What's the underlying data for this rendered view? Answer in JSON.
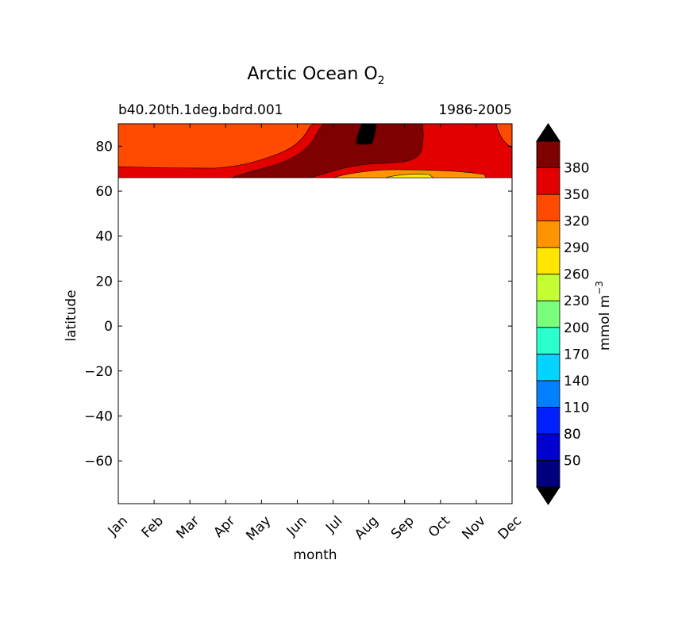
{
  "chart_data": {
    "type": "heatmap",
    "title_main": "Arctic Ocean O",
    "title_sub": "2",
    "subtitle_left": "b40.20th.1deg.bdrd.001",
    "subtitle_right": "1986-2005",
    "xlabel": "month",
    "ylabel": "latitude",
    "x_ticks": [
      "Jan",
      "Feb",
      "Mar",
      "Apr",
      "May",
      "Jun",
      "Jul",
      "Aug",
      "Sep",
      "Oct",
      "Nov",
      "Dec"
    ],
    "y_ticks": [
      "80",
      "60",
      "40",
      "20",
      "0",
      "−20",
      "−40",
      "−60"
    ],
    "y_tick_values": [
      80,
      60,
      40,
      20,
      0,
      -20,
      -40,
      -60
    ],
    "ylim": [
      -79,
      90
    ],
    "data_lat_range": [
      66.5,
      90
    ],
    "colorbar": {
      "label": "mmol m",
      "label_exp": "−3",
      "tick_labels": [
        "50",
        "80",
        "110",
        "140",
        "170",
        "200",
        "230",
        "260",
        "290",
        "320",
        "350",
        "380"
      ],
      "levels": [
        20,
        50,
        80,
        110,
        140,
        170,
        200,
        230,
        260,
        290,
        320,
        350,
        380,
        410
      ],
      "colors": [
        "#00007f",
        "#0000d0",
        "#0020ff",
        "#0080ff",
        "#00d4ff",
        "#2affce",
        "#7aff7d",
        "#c4ff33",
        "#ffe500",
        "#ff9400",
        "#ff4a00",
        "#e30000",
        "#7f0000"
      ],
      "under_color": "#000000",
      "over_color": "#000000"
    },
    "regions": [
      {
        "name": "level-320-350",
        "color": "#ff4a00"
      },
      {
        "name": "level-350-380",
        "color": "#e30000"
      },
      {
        "name": "level-380-410",
        "color": "#7f0000"
      },
      {
        "name": "level-above-410",
        "color": "#000000"
      },
      {
        "name": "level-290-320",
        "color": "#ff9400"
      },
      {
        "name": "level-260-290",
        "color": "#ffe500"
      }
    ]
  }
}
